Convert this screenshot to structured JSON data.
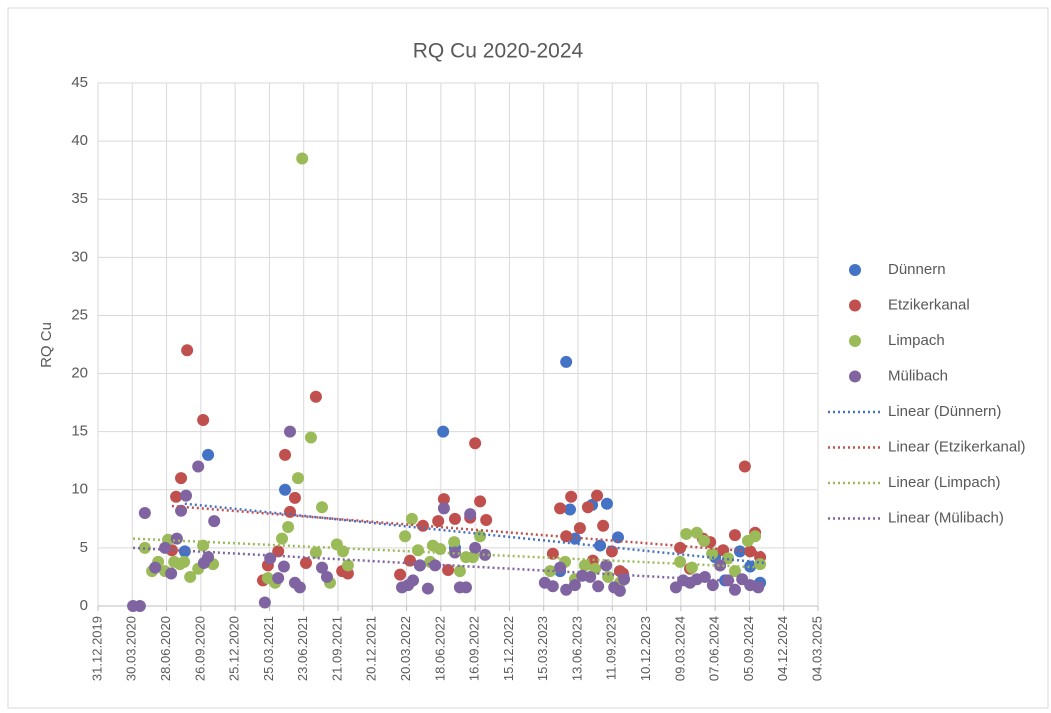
{
  "chart_data": {
    "type": "scatter",
    "title": "RQ Cu 2020-2024",
    "y_label": "RQ Cu",
    "xlim": [
      43830,
      45720
    ],
    "xticks": [
      {
        "value": 43830,
        "label": "31.12.2019"
      },
      {
        "value": 43920,
        "label": "30.03.2020"
      },
      {
        "value": 44010,
        "label": "28.06.2020"
      },
      {
        "value": 44100,
        "label": "26.09.2020"
      },
      {
        "value": 44190,
        "label": "25.12.2020"
      },
      {
        "value": 44280,
        "label": "25.03.2021"
      },
      {
        "value": 44370,
        "label": "23.06.2021"
      },
      {
        "value": 44460,
        "label": "21.09.2021"
      },
      {
        "value": 44550,
        "label": "20.12.2021"
      },
      {
        "value": 44640,
        "label": "20.03.2022"
      },
      {
        "value": 44730,
        "label": "18.06.2022"
      },
      {
        "value": 44820,
        "label": "16.09.2022"
      },
      {
        "value": 44910,
        "label": "15.12.2022"
      },
      {
        "value": 45000,
        "label": "15.03.2023"
      },
      {
        "value": 45090,
        "label": "13.06.2023"
      },
      {
        "value": 45180,
        "label": "11.09.2023"
      },
      {
        "value": 45270,
        "label": "10.12.2023"
      },
      {
        "value": 45360,
        "label": "09.03.2024"
      },
      {
        "value": 45450,
        "label": "07.06.2024"
      },
      {
        "value": 45540,
        "label": "05.09.2024"
      },
      {
        "value": 45630,
        "label": "04.12.2024"
      },
      {
        "value": 45720,
        "label": "04.03.2025"
      }
    ],
    "ylim": [
      0,
      45
    ],
    "yticks": [
      0,
      5,
      10,
      15,
      20,
      25,
      30,
      35,
      40,
      45
    ],
    "grid": true,
    "series": [
      {
        "name": "Dünnern",
        "color": "#4472c4",
        "x": [
          44058,
          44119,
          44321,
          44736,
          45059,
          45069,
          45082,
          45127,
          45166,
          45195,
          45148,
          45450,
          45476,
          45515,
          45542,
          45568,
          45043,
          44767,
          44675
        ],
        "values": [
          4.7,
          13,
          10,
          15,
          21,
          8.3,
          5.8,
          8.7,
          8.8,
          5.9,
          5.2,
          4.2,
          2.2,
          4.7,
          3.4,
          2.0,
          3.0,
          5.0,
          3.5
        ]
      },
      {
        "name": "Etzikerkanal",
        "color": "#c0504d",
        "x": [
          44035,
          44048,
          44064,
          44024,
          44106,
          44263,
          44276,
          44303,
          44321,
          44334,
          44347,
          44376,
          44402,
          44486,
          44471,
          44623,
          44649,
          44683,
          44723,
          44738,
          44767,
          44807,
          44820,
          44833,
          44849,
          44749,
          45024,
          45043,
          45059,
          45072,
          45095,
          45116,
          45140,
          45156,
          45179,
          45200,
          45208,
          45358,
          45384,
          45418,
          45437,
          45471,
          45502,
          45528,
          45542,
          45555,
          45568,
          45129
        ],
        "values": [
          9.4,
          11,
          22,
          4.8,
          16,
          2.2,
          3.5,
          4.7,
          13,
          8.1,
          9.3,
          3.7,
          18,
          2.8,
          3.0,
          2.7,
          3.9,
          6.9,
          7.3,
          9.2,
          7.5,
          7.6,
          14,
          9.0,
          7.4,
          3.1,
          4.5,
          8.4,
          6.0,
          9.4,
          6.7,
          8.5,
          9.5,
          6.9,
          4.7,
          3.0,
          2.8,
          5.0,
          3.2,
          5.8,
          5.5,
          4.8,
          6.1,
          12,
          4.7,
          6.3,
          4.2,
          3.9
        ]
      },
      {
        "name": "Limpach",
        "color": "#9bbb59",
        "x": [
          43953,
          43972,
          43988,
          44006,
          44014,
          44030,
          44045,
          44056,
          44072,
          44093,
          44106,
          44132,
          44276,
          44295,
          44313,
          44329,
          44355,
          44366,
          44389,
          44402,
          44418,
          44439,
          44457,
          44473,
          44486,
          44636,
          44654,
          44670,
          44702,
          44709,
          44728,
          44765,
          44780,
          44796,
          44814,
          44833,
          45017,
          45056,
          45082,
          45108,
          45135,
          45169,
          45200,
          45358,
          45374,
          45389,
          45402,
          45421,
          45442,
          45463,
          45484,
          45502,
          45536,
          45555,
          45568
        ],
        "values": [
          5.0,
          3.0,
          3.8,
          3.0,
          5.7,
          3.8,
          3.6,
          3.8,
          2.5,
          3.2,
          5.2,
          3.6,
          2.4,
          2.0,
          5.8,
          6.8,
          11,
          38.5,
          14.5,
          4.6,
          8.5,
          2.0,
          5.3,
          4.7,
          3.5,
          6.0,
          7.5,
          4.8,
          3.8,
          5.2,
          4.9,
          5.5,
          3.0,
          4.2,
          4.2,
          6.0,
          3.0,
          3.8,
          2.3,
          3.5,
          3.2,
          2.5,
          2.0,
          3.8,
          6.2,
          3.3,
          6.3,
          5.6,
          4.5,
          3.5,
          4.1,
          3.0,
          5.6,
          6.0,
          3.6
        ]
      },
      {
        "name": "Mülibach",
        "color": "#8064a2",
        "x": [
          43922,
          43940,
          43953,
          43980,
          44006,
          44022,
          44037,
          44048,
          44061,
          44093,
          44108,
          44119,
          44135,
          44268,
          44282,
          44303,
          44318,
          44334,
          44347,
          44360,
          44418,
          44431,
          44628,
          44644,
          44657,
          44675,
          44696,
          44715,
          44738,
          44767,
          44780,
          44796,
          44807,
          44820,
          44846,
          45003,
          45024,
          45043,
          45059,
          45082,
          45101,
          45122,
          45143,
          45164,
          45185,
          45200,
          45211,
          45347,
          45366,
          45384,
          45402,
          45423,
          45444,
          45463,
          45484,
          45502,
          45521,
          45542,
          45563
        ],
        "values": [
          0,
          0,
          8.0,
          3.3,
          5.0,
          2.8,
          5.8,
          8.2,
          9.5,
          12,
          3.7,
          4.2,
          7.3,
          0.3,
          4.1,
          2.4,
          3.4,
          15,
          2.0,
          1.6,
          3.3,
          2.5,
          1.6,
          1.8,
          2.2,
          3.5,
          1.5,
          3.5,
          8.4,
          4.6,
          1.6,
          1.6,
          7.9,
          5.0,
          4.4,
          2.0,
          1.7,
          3.3,
          1.4,
          1.8,
          2.6,
          2.5,
          1.7,
          3.5,
          1.6,
          1.3,
          2.3,
          1.6,
          2.2,
          2.0,
          2.3,
          2.5,
          1.8,
          3.5,
          2.2,
          1.4,
          2.3,
          1.8,
          1.6
        ]
      }
    ],
    "trendlines": [
      {
        "name": "Linear (Dünnern)",
        "color": "#4472c4",
        "x": [
          44058,
          45581
        ],
        "values": [
          8.8,
          3.7
        ]
      },
      {
        "name": "Linear (Etzikerkanal)",
        "color": "#c0504d",
        "x": [
          44024,
          45581
        ],
        "values": [
          8.6,
          4.6
        ]
      },
      {
        "name": "Linear (Limpach)",
        "color": "#9bbb59",
        "x": [
          43922,
          45581
        ],
        "values": [
          5.8,
          3.3
        ]
      },
      {
        "name": "Linear (Mülibach)",
        "color": "#8064a2",
        "x": [
          43922,
          45581
        ],
        "values": [
          5.0,
          2.0
        ]
      }
    ]
  }
}
